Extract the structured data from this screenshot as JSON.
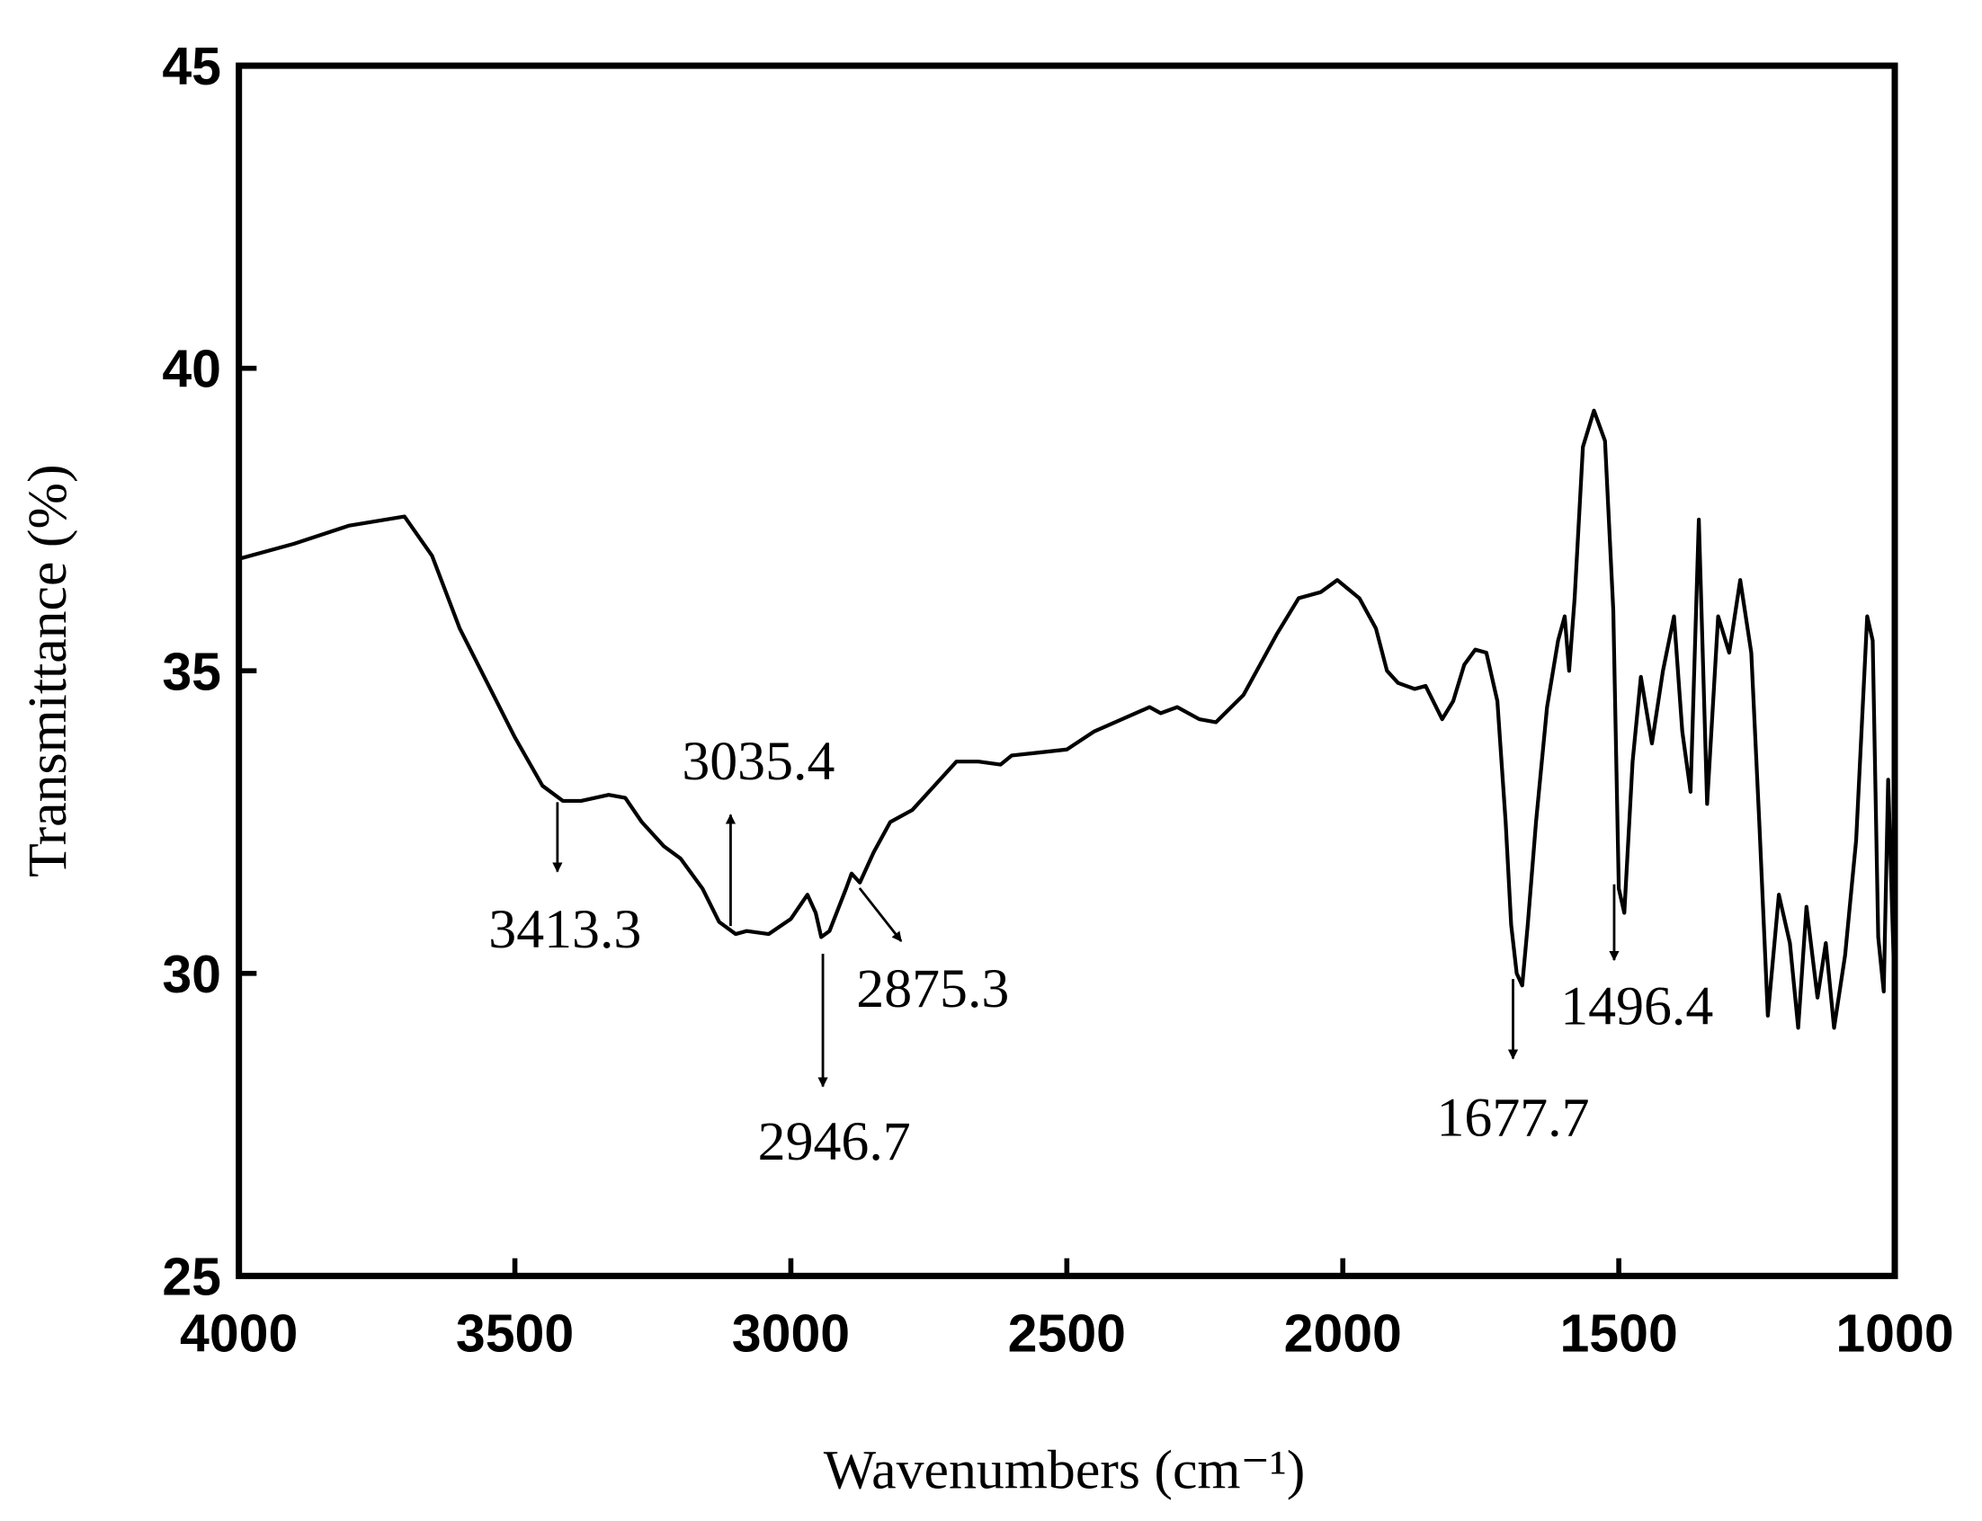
{
  "chart_data": {
    "type": "line",
    "xlabel": "Wavenumbers (cm⁻¹)",
    "ylabel": "Transmittance (%)",
    "xlim": [
      4000,
      1000
    ],
    "xticks": [
      4000,
      3500,
      3000,
      2500,
      2000,
      1500,
      1000
    ],
    "ylim": [
      25,
      45
    ],
    "yticks": [
      25,
      30,
      35,
      40,
      45
    ],
    "series": [
      {
        "color": "#000000",
        "x": [
          4000,
          3900,
          3800,
          3700,
          3650,
          3600,
          3550,
          3500,
          3450,
          3413,
          3380,
          3330,
          3300,
          3270,
          3230,
          3200,
          3160,
          3130,
          3100,
          3080,
          3040,
          3000,
          2970,
          2955,
          2945,
          2930,
          2900,
          2890,
          2875,
          2850,
          2820,
          2780,
          2740,
          2700,
          2660,
          2620,
          2600,
          2550,
          2500,
          2450,
          2400,
          2350,
          2330,
          2300,
          2260,
          2230,
          2180,
          2120,
          2080,
          2040,
          2010,
          1970,
          1940,
          1920,
          1900,
          1870,
          1850,
          1820,
          1800,
          1780,
          1760,
          1740,
          1720,
          1705,
          1695,
          1685,
          1675,
          1665,
          1650,
          1630,
          1610,
          1598,
          1590,
          1580,
          1565,
          1545,
          1525,
          1510,
          1500,
          1490,
          1475,
          1460,
          1440,
          1420,
          1400,
          1385,
          1370,
          1355,
          1340,
          1320,
          1300,
          1280,
          1260,
          1245,
          1230,
          1210,
          1190,
          1175,
          1160,
          1140,
          1125,
          1110,
          1090,
          1070,
          1050,
          1040,
          1030,
          1020,
          1012,
          1000
        ],
        "values": [
          36.85,
          37.1,
          37.4,
          37.55,
          36.9,
          35.7,
          34.8,
          33.9,
          33.1,
          32.85,
          32.85,
          32.95,
          32.9,
          32.5,
          32.1,
          31.9,
          31.4,
          30.85,
          30.65,
          30.7,
          30.65,
          30.9,
          31.3,
          31.0,
          30.6,
          30.7,
          31.4,
          31.65,
          31.5,
          32.0,
          32.5,
          32.7,
          33.1,
          33.5,
          33.5,
          33.45,
          33.6,
          33.65,
          33.7,
          34.0,
          34.2,
          34.4,
          34.3,
          34.4,
          34.2,
          34.15,
          34.6,
          35.6,
          36.2,
          36.3,
          36.5,
          36.2,
          35.7,
          35.0,
          34.8,
          34.7,
          34.75,
          34.2,
          34.5,
          35.1,
          35.35,
          35.3,
          34.5,
          32.5,
          30.8,
          30.0,
          29.8,
          30.8,
          32.5,
          34.4,
          35.5,
          35.9,
          35.0,
          36.2,
          38.7,
          39.3,
          38.8,
          36.0,
          31.4,
          31.0,
          33.5,
          34.9,
          33.8,
          35.0,
          35.9,
          34.0,
          33.0,
          37.5,
          32.8,
          35.9,
          35.3,
          36.5,
          35.3,
          32.4,
          29.3,
          31.3,
          30.5,
          29.1,
          31.1,
          29.6,
          30.5,
          29.1,
          30.3,
          32.2,
          35.9,
          35.5,
          30.6,
          29.7,
          33.2,
          29.6
        ]
      }
    ],
    "annotations": [
      "3413.3",
      "3035.4",
      "2946.7",
      "2875.3",
      "1677.7",
      "1496.4"
    ]
  }
}
